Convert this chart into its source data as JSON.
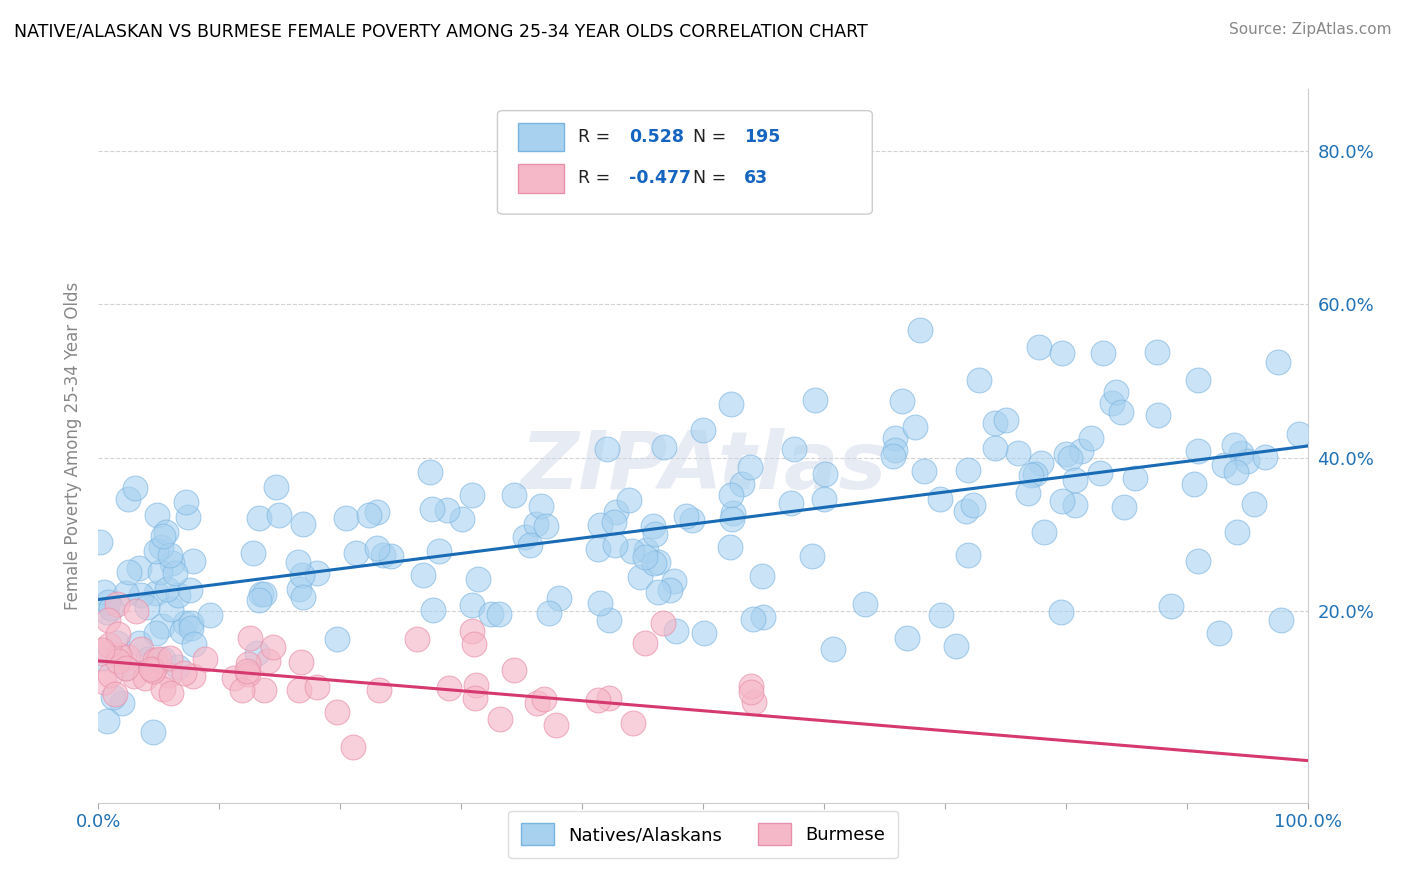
{
  "title": "NATIVE/ALASKAN VS BURMESE FEMALE POVERTY AMONG 25-34 YEAR OLDS CORRELATION CHART",
  "source": "Source: ZipAtlas.com",
  "ylabel": "Female Poverty Among 25-34 Year Olds",
  "xlim": [
    0,
    1.0
  ],
  "ylim": [
    -0.05,
    0.88
  ],
  "xticks": [
    0.0,
    0.1,
    0.2,
    0.3,
    0.4,
    0.5,
    0.6,
    0.7,
    0.8,
    0.9,
    1.0
  ],
  "xticklabels": [
    "0.0%",
    "",
    "",
    "",
    "",
    "",
    "",
    "",
    "",
    "",
    "100.0%"
  ],
  "ytick_positions": [
    0.0,
    0.2,
    0.4,
    0.6,
    0.8
  ],
  "yticklabels": [
    "",
    "20.0%",
    "40.0%",
    "60.0%",
    "80.0%"
  ],
  "blue_R": 0.528,
  "blue_N": 195,
  "pink_R": -0.477,
  "pink_N": 63,
  "blue_color": "#a8d1f0",
  "pink_color": "#f5b8c8",
  "blue_edge_color": "#7ab5e0",
  "pink_edge_color": "#e890aa",
  "blue_line_color": "#1a6bb5",
  "pink_line_color": "#d63870",
  "legend_label_blue": "Natives/Alaskans",
  "legend_label_pink": "Burmese",
  "background_color": "#ffffff",
  "watermark_text": "ZIPAtlas",
  "blue_trend_x": [
    0.0,
    1.0
  ],
  "blue_trend_y": [
    0.215,
    0.415
  ],
  "pink_trend_x": [
    0.0,
    1.0
  ],
  "pink_trend_y": [
    0.135,
    0.005
  ]
}
